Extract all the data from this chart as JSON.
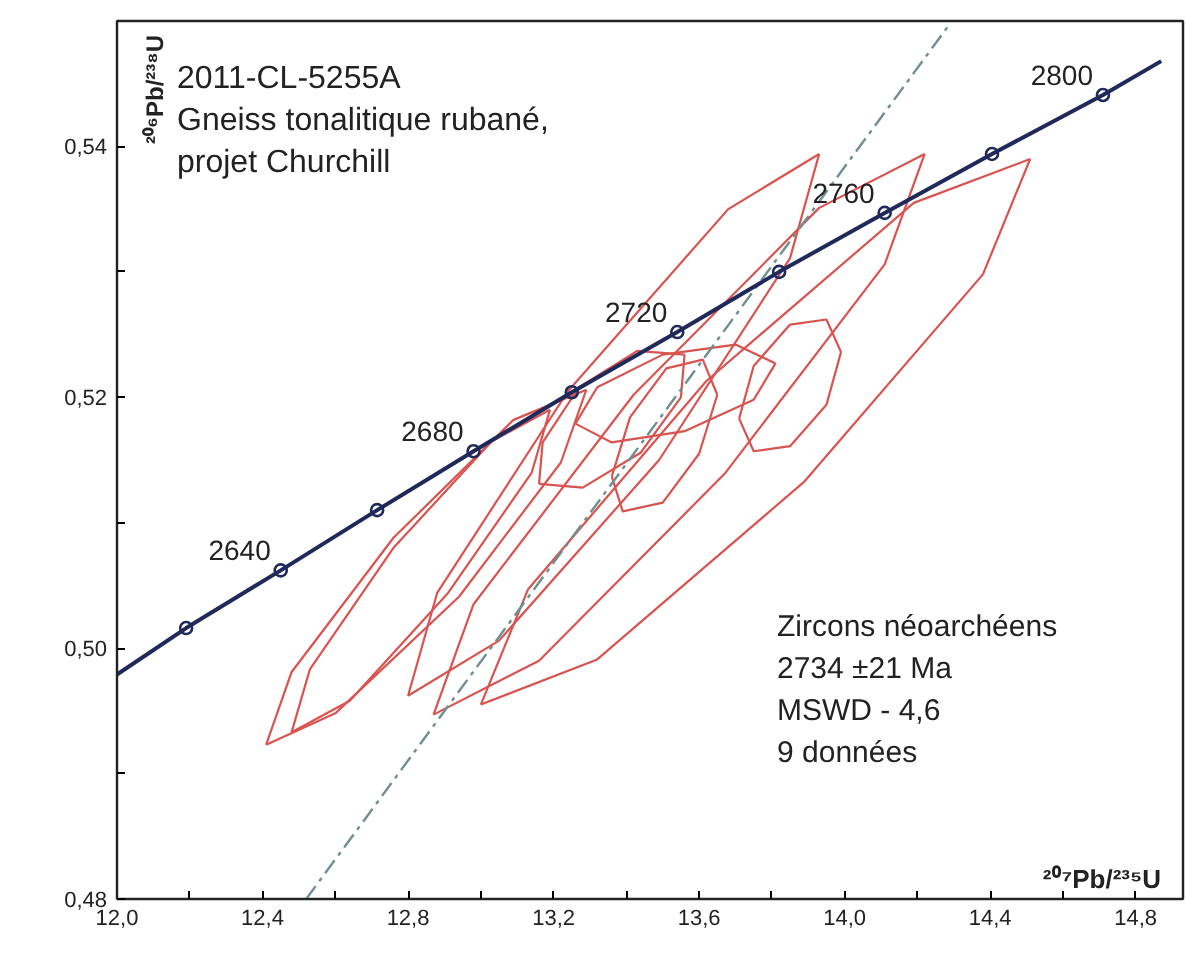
{
  "chart_data": {
    "type": "line",
    "title": "2011-CL-5255A",
    "subtitle": "Gneiss tonalitique rubané,\nprojet Churchill",
    "xlabel": "²⁰⁷Pb/²³⁵U",
    "ylabel": "²⁰⁶Pb/²³⁸U",
    "xlim": [
      12.0,
      14.93
    ],
    "ylim": [
      0.48,
      0.55
    ],
    "xticks": [
      {
        "value": 12.0,
        "label": "12,0"
      },
      {
        "value": 12.2,
        "label": null
      },
      {
        "value": 12.4,
        "label": "12,4"
      },
      {
        "value": 12.6,
        "label": null
      },
      {
        "value": 12.8,
        "label": "12,8"
      },
      {
        "value": 13.0,
        "label": null
      },
      {
        "value": 13.2,
        "label": "13,2"
      },
      {
        "value": 13.4,
        "label": null
      },
      {
        "value": 13.6,
        "label": "13,6"
      },
      {
        "value": 13.8,
        "label": null
      },
      {
        "value": 14.0,
        "label": "14,0"
      },
      {
        "value": 14.2,
        "label": null
      },
      {
        "value": 14.4,
        "label": "14,4"
      },
      {
        "value": 14.6,
        "label": null
      },
      {
        "value": 14.8,
        "label": "14,8"
      }
    ],
    "yticks": [
      {
        "value": 0.48,
        "label": "0,48"
      },
      {
        "value": 0.49,
        "label": null
      },
      {
        "value": 0.5,
        "label": "0,50"
      },
      {
        "value": 0.51,
        "label": null
      },
      {
        "value": 0.52,
        "label": "0,52"
      },
      {
        "value": 0.53,
        "label": null
      },
      {
        "value": 0.54,
        "label": "0,54"
      }
    ],
    "grid": false,
    "series": [
      {
        "color": "#d9534f",
        "x": [
          12.41,
          12.6,
          12.94,
          13.22,
          13.29
        ],
        "values": [
          0.4923,
          0.4948,
          0.5041,
          0.5148,
          0.5206
        ]
      },
      {
        "color": "#d9534f",
        "x": [
          12.41,
          12.48,
          12.76,
          13.09,
          13.29
        ],
        "values": [
          0.4923,
          0.4981,
          0.5088,
          0.5182,
          0.5206
        ]
      },
      {
        "color": "#d9534f",
        "x": [
          12.48,
          12.64,
          12.91,
          13.14,
          13.19
        ],
        "values": [
          0.4933,
          0.4958,
          0.5044,
          0.514,
          0.519
        ]
      },
      {
        "color": "#d9534f",
        "x": [
          12.48,
          12.53,
          12.76,
          13.03,
          13.19
        ],
        "values": [
          0.4933,
          0.4983,
          0.508,
          0.5165,
          0.519
        ]
      },
      {
        "color": "#d9534f",
        "x": [
          12.8,
          13.05,
          13.49,
          13.85,
          13.93
        ],
        "values": [
          0.4962,
          0.5006,
          0.515,
          0.5311,
          0.5394
        ]
      },
      {
        "color": "#d9534f",
        "x": [
          12.8,
          12.88,
          13.24,
          13.68,
          13.93
        ],
        "values": [
          0.4962,
          0.5044,
          0.5205,
          0.535,
          0.5394
        ]
      },
      {
        "color": "#d9534f",
        "x": [
          12.87,
          13.16,
          13.67,
          14.11,
          14.22
        ],
        "values": [
          0.4947,
          0.499,
          0.5139,
          0.5306,
          0.5394
        ]
      },
      {
        "color": "#d9534f",
        "x": [
          12.87,
          12.98,
          13.42,
          13.93,
          14.22
        ],
        "values": [
          0.4947,
          0.5035,
          0.5202,
          0.5351,
          0.5394
        ]
      },
      {
        "color": "#d9534f",
        "x": [
          13.0,
          13.32,
          13.89,
          14.38,
          14.51
        ],
        "values": [
          0.4955,
          0.4991,
          0.5133,
          0.5298,
          0.539
        ]
      },
      {
        "color": "#d9534f",
        "x": [
          13.0,
          13.13,
          13.62,
          14.19,
          14.51
        ],
        "values": [
          0.4955,
          0.5047,
          0.5213,
          0.5355,
          0.539
        ]
      },
      {
        "color": "#d9534f",
        "x": [
          13.71,
          13.75,
          13.85,
          13.95,
          13.99
        ],
        "values": [
          0.5183,
          0.5157,
          0.5161,
          0.5194,
          0.5236
        ]
      },
      {
        "color": "#d9534f",
        "x": [
          13.71,
          13.75,
          13.85,
          13.95,
          13.99
        ],
        "values": [
          0.5183,
          0.5225,
          0.5258,
          0.5262,
          0.5236
        ]
      },
      {
        "color": "#d9534f",
        "x": [
          13.36,
          13.39,
          13.5,
          13.6,
          13.65
        ],
        "values": [
          0.5137,
          0.5109,
          0.5116,
          0.5155,
          0.5202
        ]
      },
      {
        "color": "#d9534f",
        "x": [
          13.36,
          13.41,
          13.51,
          13.61,
          13.65
        ],
        "values": [
          0.5137,
          0.5184,
          0.5223,
          0.523,
          0.5202
        ]
      },
      {
        "color": "#d9534f",
        "x": [
          13.26,
          13.36,
          13.56,
          13.75,
          13.81
        ],
        "values": [
          0.5179,
          0.5164,
          0.5173,
          0.5198,
          0.5227
        ]
      },
      {
        "color": "#d9534f",
        "x": [
          13.26,
          13.32,
          13.5,
          13.7,
          13.81
        ],
        "values": [
          0.5179,
          0.5208,
          0.5234,
          0.5242,
          0.5227
        ]
      },
      {
        "color": "#d9534f",
        "x": [
          13.16,
          13.28,
          13.44,
          13.55,
          13.56
        ],
        "values": [
          0.5131,
          0.5128,
          0.5156,
          0.52,
          0.5234
        ]
      },
      {
        "color": "#d9534f",
        "x": [
          13.16,
          13.17,
          13.27,
          13.43,
          13.56
        ],
        "values": [
          0.5131,
          0.5164,
          0.5208,
          0.5237,
          0.5234
        ]
      },
      {
        "type": "line",
        "color": "#6f9090",
        "line_style": "dashed",
        "x": [
          12.52,
          14.29
        ],
        "values": [
          0.48,
          0.5498
        ]
      },
      {
        "type": "line",
        "color": "#1f2a5a",
        "line_style": "solid",
        "x": [
          12.0,
          12.19,
          12.45,
          12.715,
          12.98,
          13.25,
          13.54,
          13.82,
          14.11,
          14.405,
          14.71,
          14.87
        ],
        "values": [
          0.4979,
          0.5016,
          0.5062,
          0.511,
          0.5157,
          0.5204,
          0.5252,
          0.53,
          0.5347,
          0.5394,
          0.5441,
          0.5468
        ]
      },
      {
        "type": "scatter",
        "color": "#1f2a5a",
        "marker": "circle",
        "x": [
          12.19,
          12.45,
          12.715,
          12.98,
          13.25,
          13.54,
          13.82,
          14.11,
          14.405,
          14.71
        ],
        "values": [
          0.5016,
          0.5062,
          0.511,
          0.5157,
          0.5204,
          0.5252,
          0.53,
          0.5347,
          0.5394,
          0.5441
        ]
      }
    ],
    "annotations": [
      {
        "text": "2640",
        "x": 12.45,
        "y": 0.5062
      },
      {
        "text": "2680",
        "x": 12.98,
        "y": 0.5157
      },
      {
        "text": "2720",
        "x": 13.54,
        "y": 0.5252
      },
      {
        "text": "2760",
        "x": 14.11,
        "y": 0.5347
      },
      {
        "text": "2800",
        "x": 14.71,
        "y": 0.5441
      },
      "Zircons néoarchéens",
      "2734 ±21 Ma",
      "MSWD - 4,6",
      "9 données"
    ]
  }
}
